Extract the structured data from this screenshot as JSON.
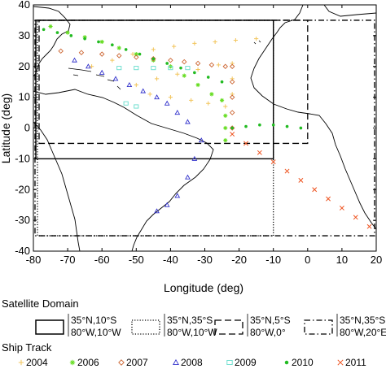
{
  "chart_data": {
    "type": "scatter",
    "xlabel": "Longitude (deg)",
    "ylabel": "Latitude (deg)",
    "xlim": [
      -80,
      20
    ],
    "ylim": [
      -40,
      40
    ],
    "x_ticks": [
      -80,
      -70,
      -60,
      -50,
      -40,
      -30,
      -20,
      -10,
      0,
      10,
      20
    ],
    "y_ticks": [
      -40,
      -30,
      -20,
      -10,
      0,
      10,
      20,
      30,
      40
    ],
    "x_tick_labels": [
      "-80",
      "-70",
      "-60",
      "-50",
      "-40",
      "-30",
      "-20",
      "-10",
      "0",
      "10",
      "20"
    ],
    "y_tick_labels": [
      "-40",
      "-30",
      "-20",
      "-10",
      "0",
      "10",
      "20",
      "30",
      "40"
    ],
    "grid": false,
    "satellite_domain": {
      "title": "Satellite Domain",
      "domains": [
        {
          "style": "solid",
          "color": "#000000",
          "lon": [
            -80,
            -10
          ],
          "lat": [
            -10,
            35
          ],
          "label_top": "35°N,10°S",
          "label_bottom": "80°W,10°W"
        },
        {
          "style": "dotted",
          "color": "#000000",
          "lon": [
            -80,
            -10
          ],
          "lat": [
            -35,
            35
          ],
          "label_top": "35°N,35°S",
          "label_bottom": "80°W,10°W"
        },
        {
          "style": "dashed",
          "color": "#000000",
          "lon": [
            -80,
            0
          ],
          "lat": [
            -5,
            35
          ],
          "label_top": "35°N,5°S",
          "label_bottom": "80°W,0°"
        },
        {
          "style": "dashdot",
          "color": "#000000",
          "lon": [
            -80,
            20
          ],
          "lat": [
            -35,
            35
          ],
          "label_top": "35°N,35°S",
          "label_bottom": "80°W,20°E"
        }
      ]
    },
    "ship_track": {
      "title": "Ship Track",
      "series": [
        {
          "name": "2004",
          "color": "#f2c55c",
          "marker": "plus",
          "x": [
            -63,
            -57,
            -51,
            -45,
            -39,
            -33,
            -27,
            -21,
            -15,
            -50,
            -44,
            -38,
            -32,
            -26,
            -22,
            -22,
            -22,
            -24,
            -29,
            -34,
            -40,
            -46
          ],
          "y": [
            20,
            22,
            24,
            25.5,
            26.5,
            27.5,
            28,
            28.5,
            29,
            14,
            16,
            17.5,
            19,
            20.5,
            21,
            16,
            11,
            7,
            8,
            9,
            10,
            11
          ]
        },
        {
          "name": "2006",
          "color": "#66dd22",
          "marker": "star",
          "x": [
            -75,
            -70,
            -65,
            -60,
            -55,
            -50,
            -45,
            -40,
            -36,
            -32,
            -28,
            -25,
            -24,
            -24,
            -24
          ],
          "y": [
            33,
            31,
            29.5,
            28,
            26,
            24,
            22,
            20,
            17,
            14,
            11,
            9,
            4,
            0,
            -4
          ]
        },
        {
          "name": "2007",
          "color": "#cc6633",
          "marker": "diamond",
          "x": [
            -72,
            -66,
            -60,
            -55,
            -50,
            -45,
            -40,
            -36,
            -32,
            -28,
            -24,
            -22,
            -22,
            -22,
            -22,
            -22
          ],
          "y": [
            25,
            24.5,
            24,
            23.5,
            23,
            22.5,
            22,
            21.5,
            21,
            20.5,
            20,
            20,
            15,
            10,
            5,
            0
          ]
        },
        {
          "name": "2008",
          "color": "#3333cc",
          "marker": "triangle",
          "x": [
            -68,
            -64,
            -60,
            -56,
            -52,
            -48,
            -44,
            -41,
            -38,
            -35,
            -31,
            -33,
            -35,
            -38,
            -41,
            -44
          ],
          "y": [
            22,
            20,
            18,
            16,
            14,
            12,
            10,
            8,
            5,
            2,
            -4,
            -10,
            -16,
            -22,
            -25,
            -27
          ]
        },
        {
          "name": "2009",
          "color": "#66ddcc",
          "marker": "square",
          "x": [
            -55,
            -50,
            -45,
            -40,
            -35,
            -53,
            -50
          ],
          "y": [
            19.5,
            19.5,
            19.5,
            19.5,
            19.5,
            8,
            7
          ]
        },
        {
          "name": "2010",
          "color": "#22bb22",
          "marker": "dot",
          "x": [
            -77,
            -73,
            -69,
            -65,
            -61,
            -57,
            -53,
            -49,
            -45,
            -41,
            -37,
            -33,
            -29,
            -25,
            -22,
            -18,
            -14,
            -10,
            -6,
            -2
          ],
          "y": [
            32,
            31,
            30,
            29,
            28,
            27,
            25.5,
            24,
            22.5,
            21,
            19.5,
            18,
            16.5,
            15,
            0,
            0.5,
            1,
            1,
            0.5,
            0
          ]
        },
        {
          "name": "2011",
          "color": "#ee5522",
          "marker": "cross",
          "x": [
            -22,
            -18,
            -14,
            -10,
            -6,
            -2,
            2,
            6,
            10,
            14,
            18
          ],
          "y": [
            -2,
            -5,
            -8,
            -11,
            -14,
            -17,
            -20,
            -23,
            -26,
            -29,
            -32
          ]
        }
      ]
    }
  }
}
